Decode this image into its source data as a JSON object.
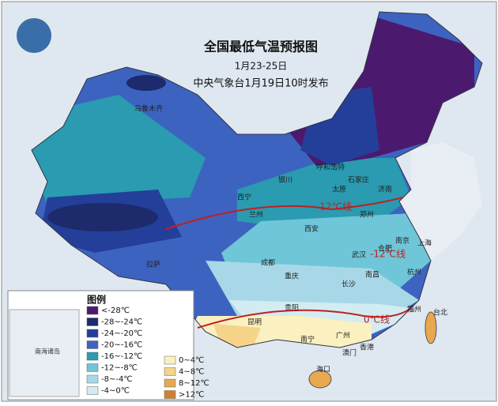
{
  "header": {
    "title": "全国最低气温预报图",
    "period": "1月23-25日",
    "issuer": "中央气象台1月19日10时发布"
  },
  "legend": {
    "title": "图例",
    "items": [
      {
        "label": "<-28℃",
        "color": "#4b1a6e"
      },
      {
        "label": "-28~-24℃",
        "color": "#1d2a6b"
      },
      {
        "label": "-24~-20℃",
        "color": "#233f9a"
      },
      {
        "label": "-20~-16℃",
        "color": "#3d63c0"
      },
      {
        "label": "-16~-12℃",
        "color": "#2a9bb0"
      },
      {
        "label": "-12~-8℃",
        "color": "#6ec6d8"
      },
      {
        "label": "-8~-4℃",
        "color": "#a8d8e8"
      },
      {
        "label": "-4~0℃",
        "color": "#d2ecf2"
      },
      {
        "label": "0~4℃",
        "color": "#fbf0c0"
      },
      {
        "label": "4~8℃",
        "color": "#f5d48a"
      },
      {
        "label": "8~12℃",
        "color": "#e8a850"
      },
      {
        "label": ">12℃",
        "color": "#d08030"
      }
    ]
  },
  "isotherms": [
    "-12℃线",
    "-12℃线",
    "0℃线"
  ],
  "inset": {
    "label": "南海诸岛"
  },
  "cities": [
    "乌鲁木齐",
    "西宁",
    "银川",
    "呼和浩特",
    "石家庄",
    "太原",
    "济南",
    "兰州",
    "西安",
    "郑州",
    "合肥",
    "南京",
    "上海",
    "武汉",
    "成都",
    "重庆",
    "长沙",
    "南昌",
    "杭州",
    "福州",
    "贵阳",
    "昆明",
    "南宁",
    "广州",
    "澳门",
    "香港",
    "拉萨",
    "海口",
    "台北"
  ]
}
